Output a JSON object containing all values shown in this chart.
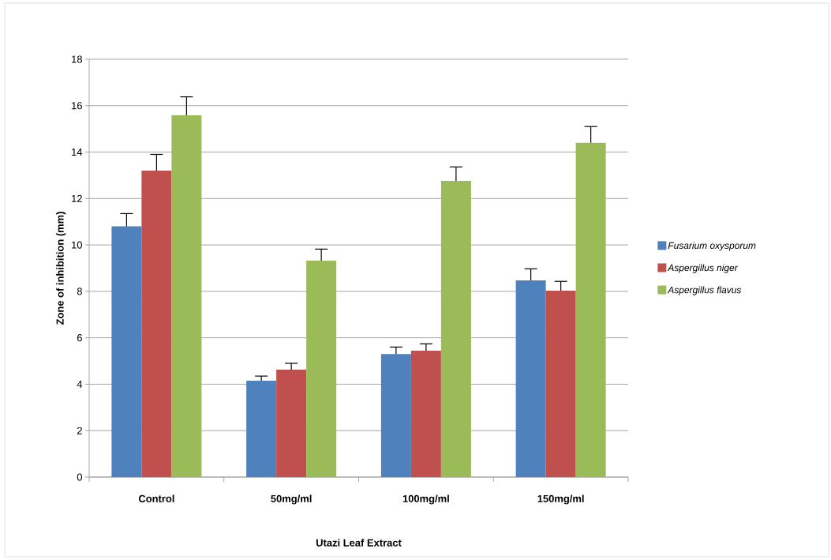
{
  "chart_data": {
    "type": "bar",
    "xlabel": "Utazi Leaf Extract",
    "ylabel": "Zone of inhibition (mm)",
    "categories": [
      "Control",
      "50mg/ml",
      "100mg/ml",
      "150mg/ml"
    ],
    "series": [
      {
        "name": "Fusarium oxysporum",
        "color": "#4f81bd",
        "values": [
          10.8,
          4.15,
          5.3,
          8.47
        ],
        "errors": [
          0.55,
          0.2,
          0.3,
          0.5
        ]
      },
      {
        "name": "Aspergillus niger",
        "color": "#c0504d",
        "values": [
          13.2,
          4.63,
          5.44,
          8.03
        ],
        "errors": [
          0.7,
          0.27,
          0.3,
          0.4
        ]
      },
      {
        "name": "Aspergillus flavus",
        "color": "#9bbb59",
        "values": [
          15.58,
          9.32,
          12.76,
          14.4
        ],
        "errors": [
          0.8,
          0.5,
          0.6,
          0.7
        ]
      }
    ],
    "ylim": [
      0,
      18
    ],
    "yticks": [
      0,
      2,
      4,
      6,
      8,
      10,
      12,
      14,
      16,
      18
    ],
    "grid": "y",
    "legend": "right"
  }
}
